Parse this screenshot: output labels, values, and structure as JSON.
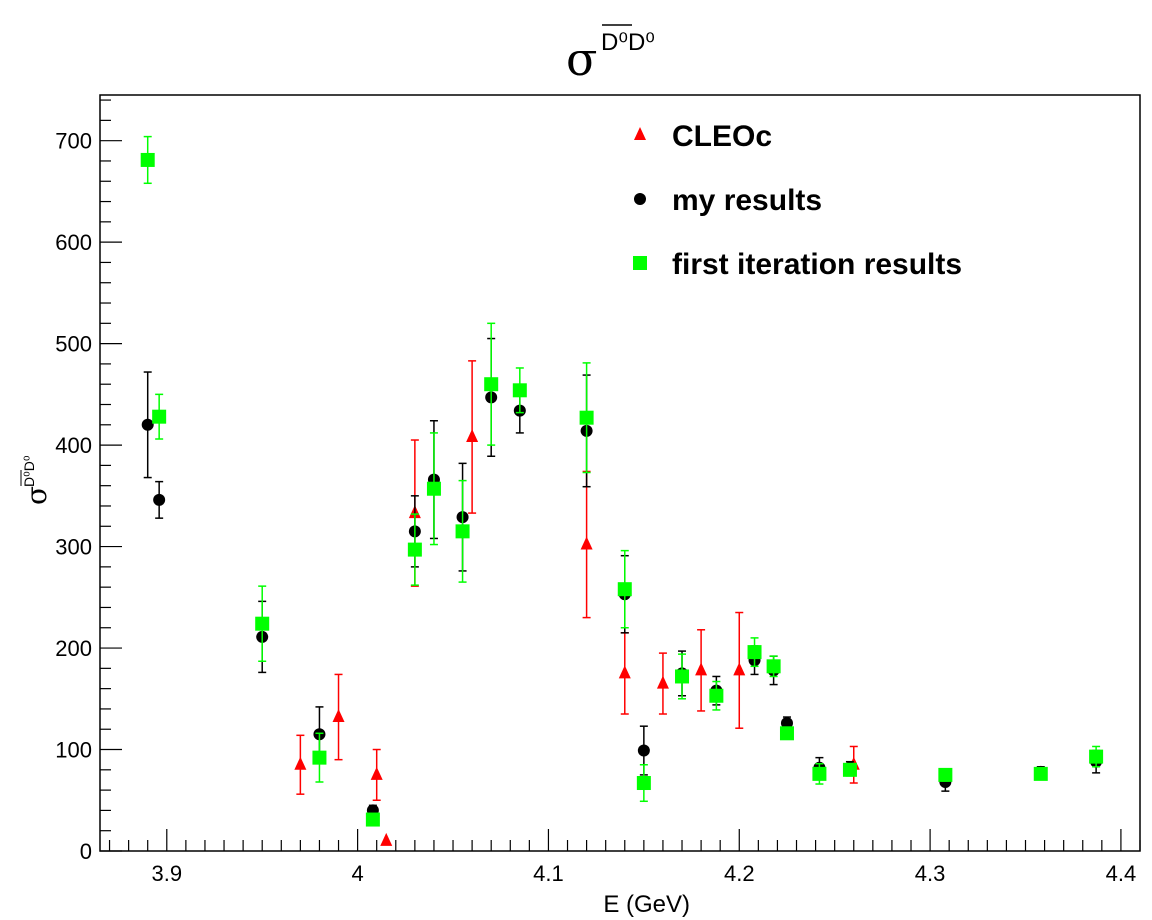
{
  "chart_data": {
    "type": "scatter",
    "title": {
      "symbol": "σ",
      "superscript": "D⁰D⁰",
      "overline": "D⁰"
    },
    "xlabel": "E (GeV)",
    "ylabel": {
      "symbol": "σ",
      "superscript": "D⁰D⁰",
      "overline": "D⁰"
    },
    "xlim": [
      3.865,
      4.41
    ],
    "ylim": [
      0,
      745
    ],
    "xticks": [
      3.9,
      4.0,
      4.1,
      4.2,
      4.3,
      4.4
    ],
    "xtick_labels": [
      "3.9",
      "4",
      "4.1",
      "4.2",
      "4.3",
      "4.4"
    ],
    "yticks": [
      0,
      100,
      200,
      300,
      400,
      500,
      600,
      700
    ],
    "ytick_labels": [
      "0",
      "100",
      "200",
      "300",
      "400",
      "500",
      "600",
      "700"
    ],
    "grid": false,
    "legend_position": "top-right",
    "series": [
      {
        "name": "CLEOc",
        "color": "#ff0000",
        "marker": "triangle",
        "points": [
          {
            "x": 3.97,
            "y": 85,
            "err": 29
          },
          {
            "x": 3.99,
            "y": 132,
            "err": 42
          },
          {
            "x": 4.01,
            "y": 75,
            "err": 25
          },
          {
            "x": 4.015,
            "y": 10,
            "err": 0
          },
          {
            "x": 4.03,
            "y": 333,
            "err": 72
          },
          {
            "x": 4.06,
            "y": 408,
            "err": 75
          },
          {
            "x": 4.12,
            "y": 302,
            "err": 72
          },
          {
            "x": 4.14,
            "y": 175,
            "err": 40
          },
          {
            "x": 4.16,
            "y": 165,
            "err": 30
          },
          {
            "x": 4.18,
            "y": 178,
            "err": 40
          },
          {
            "x": 4.2,
            "y": 178,
            "err": 57
          },
          {
            "x": 4.26,
            "y": 85,
            "err": 18
          }
        ]
      },
      {
        "name": "my results",
        "color": "#000000",
        "marker": "circle",
        "points": [
          {
            "x": 3.89,
            "y": 420,
            "err": 52
          },
          {
            "x": 3.896,
            "y": 346,
            "err": 18
          },
          {
            "x": 3.95,
            "y": 211,
            "err": 35
          },
          {
            "x": 3.98,
            "y": 115,
            "err": 27
          },
          {
            "x": 4.008,
            "y": 40,
            "err": 5
          },
          {
            "x": 4.03,
            "y": 315,
            "err": 35
          },
          {
            "x": 4.04,
            "y": 366,
            "err": 58
          },
          {
            "x": 4.055,
            "y": 329,
            "err": 53
          },
          {
            "x": 4.07,
            "y": 447,
            "err": 58
          },
          {
            "x": 4.085,
            "y": 434,
            "err": 22
          },
          {
            "x": 4.12,
            "y": 414,
            "err": 55
          },
          {
            "x": 4.14,
            "y": 253,
            "err": 38
          },
          {
            "x": 4.15,
            "y": 99,
            "err": 24
          },
          {
            "x": 4.17,
            "y": 175,
            "err": 22
          },
          {
            "x": 4.188,
            "y": 158,
            "err": 14
          },
          {
            "x": 4.208,
            "y": 188,
            "err": 14
          },
          {
            "x": 4.218,
            "y": 178,
            "err": 14
          },
          {
            "x": 4.225,
            "y": 126,
            "err": 6
          },
          {
            "x": 4.242,
            "y": 82,
            "err": 10
          },
          {
            "x": 4.258,
            "y": 82,
            "err": 6
          },
          {
            "x": 4.308,
            "y": 68,
            "err": 9
          },
          {
            "x": 4.358,
            "y": 78,
            "err": 5
          },
          {
            "x": 4.387,
            "y": 88,
            "err": 11
          }
        ]
      },
      {
        "name": "first iteration results",
        "color": "#00ff00",
        "marker": "square",
        "points": [
          {
            "x": 3.89,
            "y": 681,
            "err": 23
          },
          {
            "x": 3.896,
            "y": 428,
            "err": 22
          },
          {
            "x": 3.95,
            "y": 224,
            "err": 37
          },
          {
            "x": 3.98,
            "y": 92,
            "err": 24
          },
          {
            "x": 4.008,
            "y": 31,
            "err": 5
          },
          {
            "x": 4.03,
            "y": 297,
            "err": 35
          },
          {
            "x": 4.04,
            "y": 357,
            "err": 55
          },
          {
            "x": 4.055,
            "y": 315,
            "err": 50
          },
          {
            "x": 4.07,
            "y": 460,
            "err": 60
          },
          {
            "x": 4.085,
            "y": 454,
            "err": 22
          },
          {
            "x": 4.12,
            "y": 427,
            "err": 54
          },
          {
            "x": 4.14,
            "y": 258,
            "err": 38
          },
          {
            "x": 4.15,
            "y": 67,
            "err": 18
          },
          {
            "x": 4.17,
            "y": 172,
            "err": 22
          },
          {
            "x": 4.188,
            "y": 153,
            "err": 14
          },
          {
            "x": 4.208,
            "y": 196,
            "err": 14
          },
          {
            "x": 4.218,
            "y": 182,
            "err": 10
          },
          {
            "x": 4.225,
            "y": 116,
            "err": 5
          },
          {
            "x": 4.242,
            "y": 76,
            "err": 10
          },
          {
            "x": 4.258,
            "y": 80,
            "err": 6
          },
          {
            "x": 4.308,
            "y": 75,
            "err": 6
          },
          {
            "x": 4.358,
            "y": 76,
            "err": 5
          },
          {
            "x": 4.387,
            "y": 93,
            "err": 10
          }
        ]
      }
    ]
  }
}
